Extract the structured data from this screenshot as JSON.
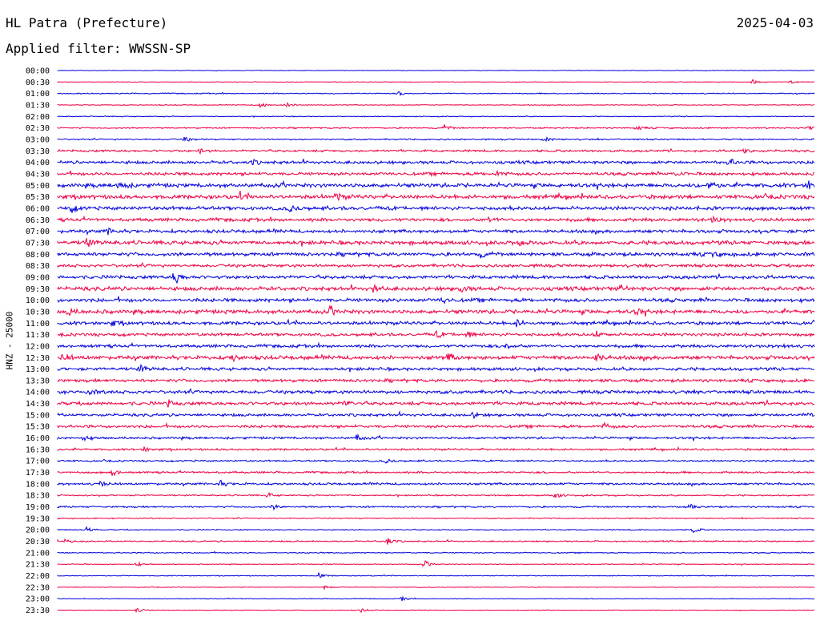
{
  "header": {
    "station": "HL Patra (Prefecture)",
    "date": "2025-04-03",
    "filter": "Applied filter: WWSSN-SP"
  },
  "chart_data": {
    "type": "line",
    "title": "HL Patra (Prefecture)",
    "subtitle": "Applied filter: WWSSN-SP",
    "ylabel": "HNZ - 25000",
    "xlabel": "",
    "colors": [
      "#0000dd",
      "#ee0044"
    ],
    "grid": false,
    "legend": "none",
    "rows": [
      {
        "label": "00:00",
        "amp": 0.4,
        "events": []
      },
      {
        "label": "00:30",
        "amp": 0.5,
        "events": [
          [
            940,
            2.5
          ],
          [
            987,
            2.0
          ]
        ]
      },
      {
        "label": "01:00",
        "amp": 0.8,
        "events": [
          [
            497,
            2.5
          ]
        ]
      },
      {
        "label": "01:30",
        "amp": 0.6,
        "events": [
          [
            325,
            4.5
          ],
          [
            357,
            3.5
          ]
        ]
      },
      {
        "label": "02:00",
        "amp": 0.6,
        "events": []
      },
      {
        "label": "02:30",
        "amp": 1.0,
        "events": [
          [
            555,
            3.5
          ],
          [
            795,
            3.0
          ],
          [
            1010,
            2.5
          ]
        ]
      },
      {
        "label": "03:00",
        "amp": 1.0,
        "events": [
          [
            230,
            3.0
          ],
          [
            680,
            3.0
          ]
        ]
      },
      {
        "label": "03:30",
        "amp": 1.6,
        "events": [
          [
            930,
            3.0
          ],
          [
            250,
            2.5
          ]
        ]
      },
      {
        "label": "04:00",
        "amp": 2.2,
        "events": [
          [
            910,
            4.5
          ],
          [
            315,
            3.0
          ]
        ]
      },
      {
        "label": "04:30",
        "amp": 2.2,
        "events": [
          [
            620,
            3.0
          ],
          [
            840,
            3.0
          ]
        ]
      },
      {
        "label": "05:00",
        "amp": 2.8,
        "events": [
          [
            148,
            6.0
          ],
          [
            885,
            7.0
          ],
          [
            1010,
            5.0
          ]
        ]
      },
      {
        "label": "05:30",
        "amp": 2.8,
        "events": [
          [
            420,
            4.0
          ],
          [
            300,
            3.0
          ]
        ]
      },
      {
        "label": "06:00",
        "amp": 2.6,
        "events": [
          [
            90,
            4.5
          ],
          [
            362,
            4.0
          ]
        ]
      },
      {
        "label": "06:30",
        "amp": 2.4,
        "events": [
          [
            610,
            3.0
          ],
          [
            890,
            3.5
          ]
        ]
      },
      {
        "label": "07:00",
        "amp": 2.4,
        "events": [
          [
            135,
            4.0
          ]
        ]
      },
      {
        "label": "07:30",
        "amp": 2.8,
        "events": [
          [
            108,
            5.0
          ],
          [
            650,
            3.0
          ]
        ]
      },
      {
        "label": "08:00",
        "amp": 2.6,
        "events": [
          [
            600,
            3.0
          ],
          [
            890,
            3.0
          ]
        ]
      },
      {
        "label": "08:30",
        "amp": 2.2,
        "events": []
      },
      {
        "label": "09:00",
        "amp": 2.4,
        "events": [
          [
            218,
            10.0
          ]
        ]
      },
      {
        "label": "09:30",
        "amp": 2.8,
        "events": [
          [
            465,
            5.0
          ],
          [
            575,
            4.5
          ],
          [
            775,
            4.0
          ]
        ]
      },
      {
        "label": "10:00",
        "amp": 2.6,
        "events": [
          [
            553,
            4.0
          ]
        ]
      },
      {
        "label": "10:30",
        "amp": 2.8,
        "events": [
          [
            85,
            5.0
          ],
          [
            412,
            4.5
          ],
          [
            795,
            4.0
          ]
        ]
      },
      {
        "label": "11:00",
        "amp": 2.4,
        "events": [
          [
            140,
            3.5
          ],
          [
            645,
            4.0
          ]
        ]
      },
      {
        "label": "11:30",
        "amp": 2.2,
        "events": [
          [
            545,
            4.0
          ],
          [
            582,
            4.0
          ],
          [
            745,
            3.5
          ]
        ]
      },
      {
        "label": "12:00",
        "amp": 2.2,
        "events": [
          [
            630,
            4.0
          ],
          [
            975,
            3.0
          ]
        ]
      },
      {
        "label": "12:30",
        "amp": 2.8,
        "events": [
          [
            78,
            5.0
          ],
          [
            290,
            4.0
          ],
          [
            560,
            4.5
          ],
          [
            745,
            4.5
          ]
        ]
      },
      {
        "label": "13:00",
        "amp": 2.2,
        "events": [
          [
            175,
            4.5
          ]
        ]
      },
      {
        "label": "13:30",
        "amp": 2.2,
        "events": []
      },
      {
        "label": "14:00",
        "amp": 2.4,
        "events": [
          [
            110,
            3.5
          ]
        ]
      },
      {
        "label": "14:30",
        "amp": 2.4,
        "events": [
          [
            210,
            3.5
          ],
          [
            430,
            3.5
          ]
        ]
      },
      {
        "label": "15:00",
        "amp": 2.0,
        "events": [
          [
            590,
            3.0
          ],
          [
            1005,
            3.0
          ]
        ]
      },
      {
        "label": "15:30",
        "amp": 2.0,
        "events": [
          [
            755,
            3.5
          ]
        ]
      },
      {
        "label": "16:00",
        "amp": 1.6,
        "events": [
          [
            105,
            3.5
          ],
          [
            445,
            3.5
          ]
        ]
      },
      {
        "label": "16:30",
        "amp": 1.4,
        "events": [
          [
            180,
            3.0
          ]
        ]
      },
      {
        "label": "17:00",
        "amp": 1.2,
        "events": [
          [
            482,
            3.0
          ]
        ]
      },
      {
        "label": "17:30",
        "amp": 1.4,
        "events": [
          [
            140,
            4.5
          ]
        ]
      },
      {
        "label": "18:00",
        "amp": 1.6,
        "events": [
          [
            125,
            3.5
          ],
          [
            275,
            3.5
          ]
        ]
      },
      {
        "label": "18:30",
        "amp": 1.0,
        "events": [
          [
            335,
            3.0
          ],
          [
            692,
            4.5
          ]
        ]
      },
      {
        "label": "19:00",
        "amp": 1.2,
        "events": [
          [
            340,
            3.5
          ],
          [
            862,
            3.0
          ]
        ]
      },
      {
        "label": "19:30",
        "amp": 0.8,
        "events": []
      },
      {
        "label": "20:00",
        "amp": 0.8,
        "events": [
          [
            108,
            3.0
          ],
          [
            865,
            4.0
          ]
        ]
      },
      {
        "label": "20:30",
        "amp": 1.0,
        "events": [
          [
            80,
            3.5
          ],
          [
            483,
            5.0
          ]
        ]
      },
      {
        "label": "21:00",
        "amp": 0.8,
        "events": []
      },
      {
        "label": "21:30",
        "amp": 0.6,
        "events": [
          [
            170,
            3.0
          ],
          [
            530,
            4.5
          ]
        ]
      },
      {
        "label": "22:00",
        "amp": 0.6,
        "events": [
          [
            398,
            3.0
          ]
        ]
      },
      {
        "label": "22:30",
        "amp": 0.5,
        "events": [
          [
            405,
            2.5
          ]
        ]
      },
      {
        "label": "23:00",
        "amp": 0.5,
        "events": [
          [
            502,
            2.5
          ]
        ]
      },
      {
        "label": "23:30",
        "amp": 0.5,
        "events": [
          [
            170,
            3.5
          ],
          [
            450,
            3.0
          ]
        ]
      }
    ]
  }
}
